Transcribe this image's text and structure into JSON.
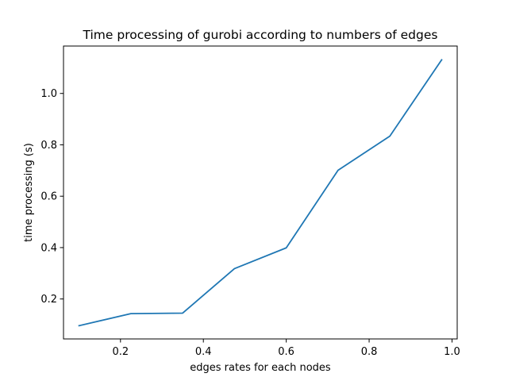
{
  "chart_data": {
    "type": "line",
    "title": "Time processing of gurobi according to numbers of edges",
    "xlabel": "edges rates for each nodes",
    "ylabel": "time processing (s)",
    "xlim": [
      0.0625,
      1.0125
    ],
    "ylim": [
      0.0445,
      1.1845
    ],
    "xticks": [
      0.2,
      0.4,
      0.6,
      0.8,
      1.0
    ],
    "xtick_labels": [
      "0.2",
      "0.4",
      "0.6",
      "0.8",
      "1.0"
    ],
    "yticks": [
      0.2,
      0.4,
      0.6,
      0.8,
      1.0
    ],
    "ytick_labels": [
      "0.2",
      "0.4",
      "0.6",
      "0.8",
      "1.0"
    ],
    "grid": false,
    "series": [
      {
        "name": "time processing",
        "color": "#1f77b4",
        "x": [
          0.1,
          0.225,
          0.35,
          0.475,
          0.6,
          0.725,
          0.85,
          0.975
        ],
        "y": [
          0.096,
          0.143,
          0.145,
          0.318,
          0.399,
          0.701,
          0.834,
          1.131
        ]
      }
    ]
  }
}
